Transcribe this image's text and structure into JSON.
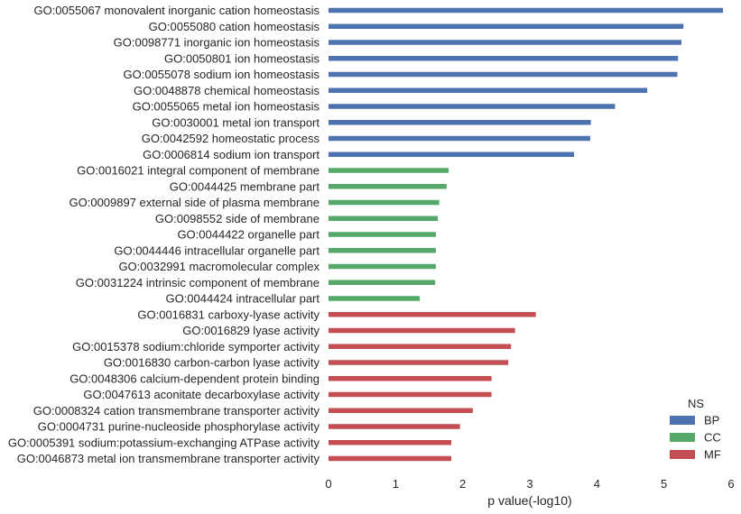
{
  "chart_data": {
    "type": "bar",
    "orientation": "horizontal",
    "xlabel": "p value(-log10)",
    "xlim": [
      0,
      6
    ],
    "xticks": [
      "0",
      "1",
      "2",
      "3",
      "4",
      "5",
      "6"
    ],
    "grid": false,
    "legend": {
      "title": "NS",
      "placement": "bottom-right",
      "entries": [
        {
          "name": "BP",
          "color": "#4c72b0"
        },
        {
          "name": "CC",
          "color": "#55a868"
        },
        {
          "name": "MF",
          "color": "#c44e52"
        }
      ]
    },
    "bars": [
      {
        "label": "GO:0055067 monovalent inorganic cation homeostasis",
        "group": "BP",
        "value": 5.88
      },
      {
        "label": "GO:0055080 cation homeostasis",
        "group": "BP",
        "value": 5.29
      },
      {
        "label": "GO:0098771 inorganic ion homeostasis",
        "group": "BP",
        "value": 5.26
      },
      {
        "label": "GO:0050801 ion homeostasis",
        "group": "BP",
        "value": 5.21
      },
      {
        "label": "GO:0055078 sodium ion homeostasis",
        "group": "BP",
        "value": 5.2
      },
      {
        "label": "GO:0048878 chemical homeostasis",
        "group": "BP",
        "value": 4.75
      },
      {
        "label": "GO:0055065 metal ion homeostasis",
        "group": "BP",
        "value": 4.27
      },
      {
        "label": "GO:0030001 metal ion transport",
        "group": "BP",
        "value": 3.91
      },
      {
        "label": "GO:0042592 homeostatic process",
        "group": "BP",
        "value": 3.9
      },
      {
        "label": "GO:0006814 sodium ion transport",
        "group": "BP",
        "value": 3.66
      },
      {
        "label": "GO:0016021 integral component of membrane",
        "group": "CC",
        "value": 1.79
      },
      {
        "label": "GO:0044425 membrane part",
        "group": "CC",
        "value": 1.76
      },
      {
        "label": "GO:0009897 external side of plasma membrane",
        "group": "CC",
        "value": 1.65
      },
      {
        "label": "GO:0098552 side of membrane",
        "group": "CC",
        "value": 1.63
      },
      {
        "label": "GO:0044422 organelle part",
        "group": "CC",
        "value": 1.6
      },
      {
        "label": "GO:0044446 intracellular organelle part",
        "group": "CC",
        "value": 1.6
      },
      {
        "label": "GO:0032991 macromolecular complex",
        "group": "CC",
        "value": 1.6
      },
      {
        "label": "GO:0031224 intrinsic component of membrane",
        "group": "CC",
        "value": 1.59
      },
      {
        "label": "GO:0044424 intracellular part",
        "group": "CC",
        "value": 1.36
      },
      {
        "label": "GO:0016831 carboxy-lyase activity",
        "group": "MF",
        "value": 3.09
      },
      {
        "label": "GO:0016829 lyase activity",
        "group": "MF",
        "value": 2.78
      },
      {
        "label": "GO:0015378 sodium:chloride symporter activity",
        "group": "MF",
        "value": 2.72
      },
      {
        "label": "GO:0016830 carbon-carbon lyase activity",
        "group": "MF",
        "value": 2.68
      },
      {
        "label": "GO:0048306 calcium-dependent protein binding",
        "group": "MF",
        "value": 2.43
      },
      {
        "label": "GO:0047613 aconitate decarboxylase activity",
        "group": "MF",
        "value": 2.43
      },
      {
        "label": "GO:0008324 cation transmembrane transporter activity",
        "group": "MF",
        "value": 2.15
      },
      {
        "label": "GO:0004731 purine-nucleoside phosphorylase activity",
        "group": "MF",
        "value": 1.96
      },
      {
        "label": "GO:0005391 sodium:potassium-exchanging ATPase activity",
        "group": "MF",
        "value": 1.83
      },
      {
        "label": "GO:0046873 metal ion transmembrane transporter activity",
        "group": "MF",
        "value": 1.83
      }
    ]
  }
}
